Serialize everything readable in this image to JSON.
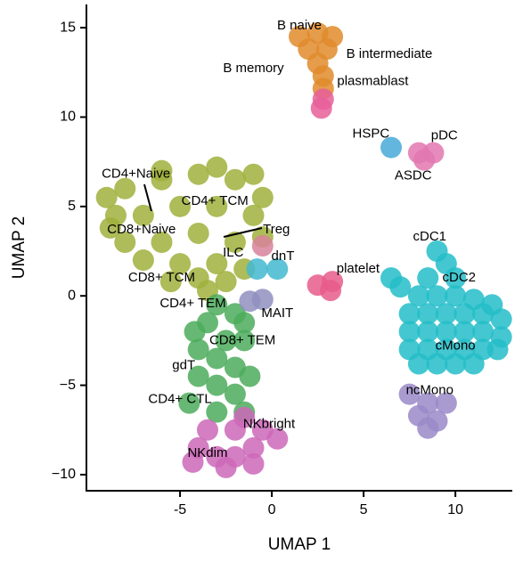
{
  "chart_data": {
    "type": "scatter",
    "xlabel": "UMAP 1",
    "ylabel": "UMAP 2",
    "xlim": [
      -10.1,
      13.1
    ],
    "ylim": [
      -10.9,
      16.3
    ],
    "xticks": [
      -5,
      0,
      5,
      10
    ],
    "yticks": [
      {
        "value": -10,
        "label": "−10"
      },
      {
        "value": -5,
        "label": "−5"
      },
      0,
      5,
      10,
      15
    ],
    "series": [
      {
        "color": "#a0b03c",
        "x": [
          -8,
          -6,
          -4,
          -2,
          -0.5,
          -8.5,
          -7,
          -5,
          -3,
          -1,
          -8,
          -6,
          -4,
          -2,
          -0.5,
          -7,
          -5,
          -3,
          -1.5,
          -4,
          -2.5,
          -6,
          -3,
          -1,
          -9,
          -8.8,
          -5.5,
          -3.5
        ],
        "y": [
          6,
          6.5,
          6.8,
          6.5,
          5.5,
          4.5,
          4.5,
          5,
          5,
          4.5,
          3,
          3,
          3.5,
          3,
          3.3,
          2,
          1.8,
          1.8,
          1.5,
          1,
          0.8,
          7,
          7.2,
          6.8,
          5.5,
          3.8,
          0.8,
          0.3
        ]
      },
      {
        "color": "#4cab5c",
        "x": [
          -3,
          -2,
          -3.5,
          -2.5,
          -4,
          -3,
          -2,
          -4,
          -3,
          -2,
          -4.5,
          -3,
          -1.5,
          -1.5,
          -1.5,
          -4.2,
          -1.2
        ],
        "y": [
          -0.5,
          -1,
          -1.5,
          -2.5,
          -3,
          -3.5,
          -4,
          -4.5,
          -5,
          -5.5,
          -6,
          -6.5,
          -6.5,
          -2.5,
          -1.5,
          -2,
          -4.5
        ]
      },
      {
        "color": "#cd67b9",
        "x": [
          -4,
          -3,
          -2,
          -1,
          -0.5,
          -3.5,
          -2,
          -1.5,
          -4.3,
          -2.5,
          -1,
          0.3
        ],
        "y": [
          -8.5,
          -9,
          -9,
          -8.5,
          -7.5,
          -7.5,
          -7.5,
          -6.8,
          -9.3,
          -9.6,
          -9.4,
          -8
        ]
      },
      {
        "color": "#e08b2c",
        "x": [
          1.5,
          2.5,
          3.3,
          2,
          3,
          2.5,
          2.8,
          2.8
        ],
        "y": [
          14.5,
          14.7,
          14.5,
          13.8,
          13.8,
          13,
          12.3,
          11.6
        ]
      },
      {
        "color": "#e75f9a",
        "x": [
          2.8,
          2.7
        ],
        "y": [
          11,
          10.5
        ]
      },
      {
        "color": "#23bdc8",
        "x": [
          9,
          9.5,
          8.5,
          10,
          7,
          8,
          9,
          10,
          11,
          12,
          7.5,
          8.5,
          9.5,
          10.5,
          11.5,
          12.5,
          7.5,
          8.5,
          9.5,
          10.5,
          11.5,
          12.5,
          7.5,
          8.5,
          9.5,
          10.5,
          11.5,
          12.3,
          8,
          9,
          10,
          11,
          6.5
        ],
        "y": [
          2.5,
          1.8,
          1,
          1,
          0.5,
          0,
          0,
          0,
          -0.2,
          -0.5,
          -1,
          -1,
          -1,
          -1,
          -1,
          -1.3,
          -2,
          -2,
          -2,
          -2,
          -2,
          -2.3,
          -3,
          -3,
          -3,
          -3,
          -3,
          -3,
          -3.8,
          -3.8,
          -3.8,
          -3.8,
          1
        ]
      },
      {
        "color": "#9a89c8",
        "x": [
          7.5,
          8.5,
          9.5,
          8,
          9,
          8.5
        ],
        "y": [
          -5.5,
          -6,
          -6,
          -6.7,
          -7,
          -7.4
        ]
      },
      {
        "color": "#e277b0",
        "x": [
          8,
          8.8,
          8.3
        ],
        "y": [
          8,
          8,
          7.6
        ]
      },
      {
        "color": "#48a9d8",
        "x": [
          6.5
        ],
        "y": [
          8.3
        ]
      },
      {
        "color": "#e85c8c",
        "x": [
          2.5,
          3.3,
          3.2
        ],
        "y": [
          0.6,
          0.8,
          0.3
        ]
      },
      {
        "color": "#8f8fc0",
        "x": [
          -1.2,
          -0.5
        ],
        "y": [
          -0.3,
          -0.2
        ]
      },
      {
        "color": "#d8829a",
        "x": [
          -0.5
        ],
        "y": [
          2.8
        ]
      },
      {
        "color": "#42b8d0",
        "x": [
          -0.8,
          0.3
        ],
        "y": [
          1.5,
          1.5
        ]
      }
    ],
    "annotations": [
      {
        "text": "B naive",
        "x": 1.5,
        "y": 15.1
      },
      {
        "text": "B intermediate",
        "x": 6.4,
        "y": 13.5
      },
      {
        "text": "B memory",
        "x": -1.0,
        "y": 12.7
      },
      {
        "text": "plasmablast",
        "x": 5.5,
        "y": 12.0
      },
      {
        "text": "HSPC",
        "x": 5.4,
        "y": 9.05
      },
      {
        "text": "pDC",
        "x": 9.4,
        "y": 8.95
      },
      {
        "text": "ASDC",
        "x": 7.7,
        "y": 6.7
      },
      {
        "text": "CD4+Naive",
        "x": -7.4,
        "y": 6.8
      },
      {
        "text": "CD4+ TCM",
        "x": -3.1,
        "y": 5.3
      },
      {
        "text": "CD8+Naive",
        "x": -7.1,
        "y": 3.7
      },
      {
        "text": "Treg",
        "x": 0.25,
        "y": 3.7
      },
      {
        "text": "ILC",
        "x": -2.1,
        "y": 2.4
      },
      {
        "text": "dnT",
        "x": 0.6,
        "y": 2.2
      },
      {
        "text": "cDC1",
        "x": 8.6,
        "y": 3.3
      },
      {
        "text": "platelet",
        "x": 4.7,
        "y": 1.5
      },
      {
        "text": "cDC2",
        "x": 10.2,
        "y": 1.0
      },
      {
        "text": "CD8+ TCM",
        "x": -6.0,
        "y": 1.0
      },
      {
        "text": "CD4+ TEM",
        "x": -4.3,
        "y": -0.45
      },
      {
        "text": "MAIT",
        "x": 0.3,
        "y": -1.0
      },
      {
        "text": "CD8+ TEM",
        "x": -1.6,
        "y": -2.5
      },
      {
        "text": "cMono",
        "x": 10.0,
        "y": -2.8
      },
      {
        "text": "gdT",
        "x": -4.8,
        "y": -3.9
      },
      {
        "text": "ncMono",
        "x": 8.6,
        "y": -5.3
      },
      {
        "text": "CD4+ CTL",
        "x": -5.0,
        "y": -5.8
      },
      {
        "text": "NKbright",
        "x": -0.15,
        "y": -7.2
      },
      {
        "text": "NKdim",
        "x": -3.5,
        "y": -8.8
      }
    ]
  }
}
